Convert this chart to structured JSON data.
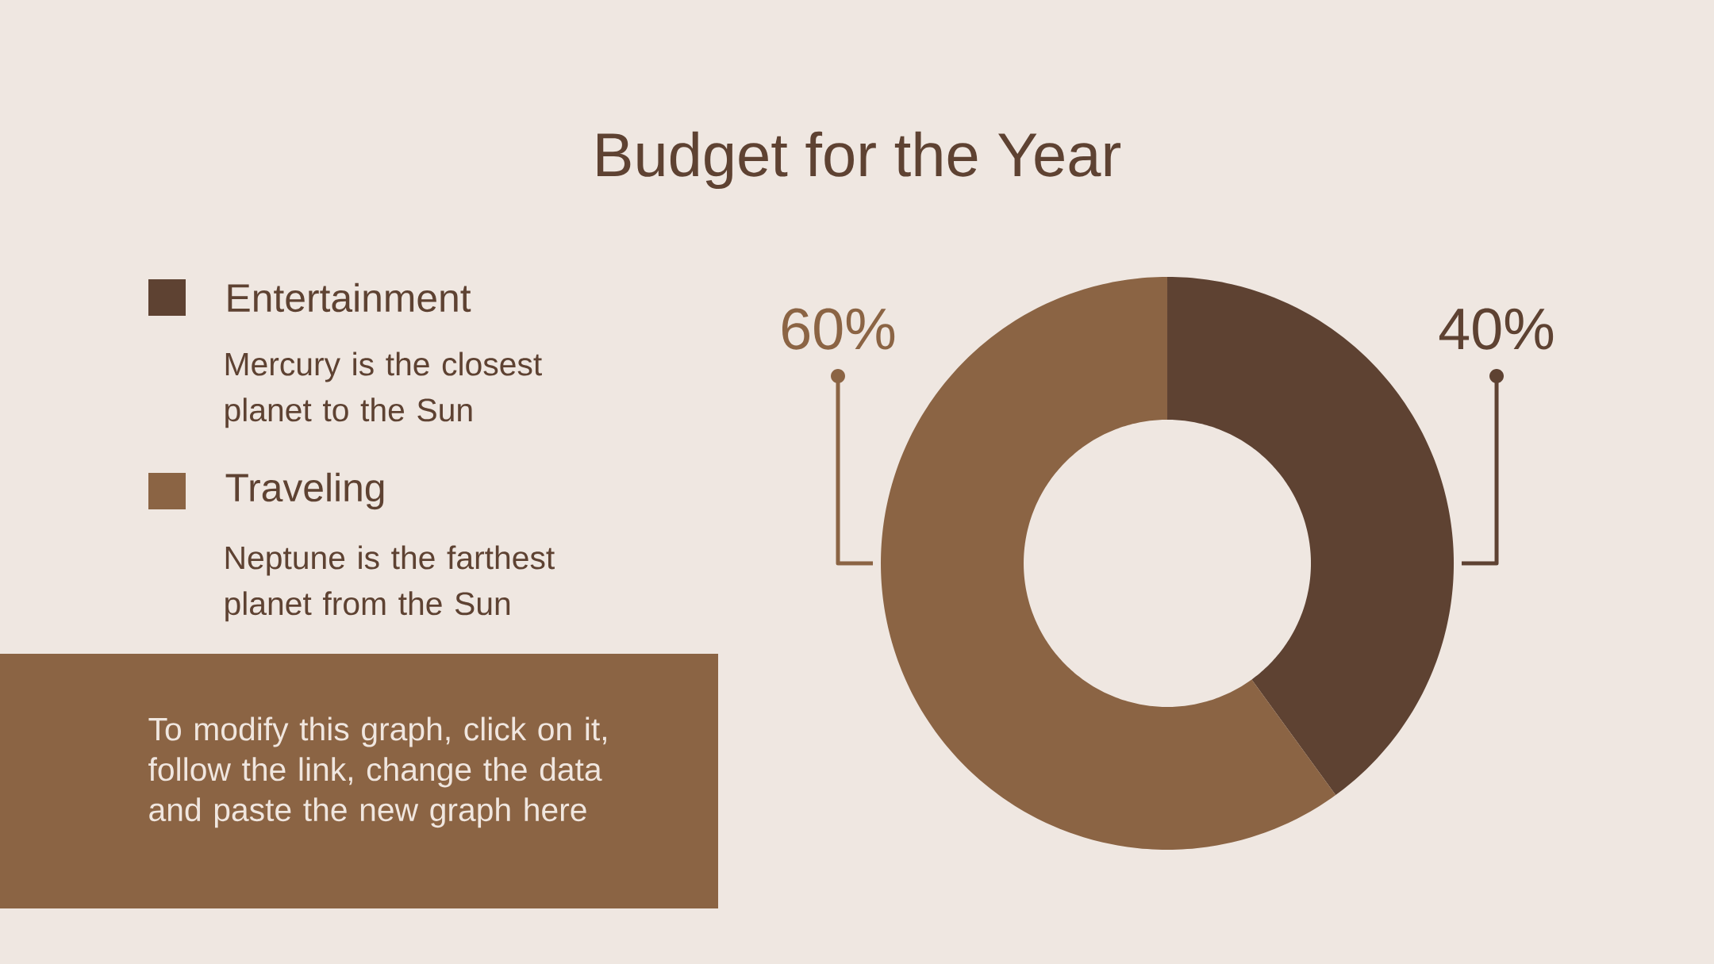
{
  "chart_data": {
    "type": "donut",
    "title": "Budget for the Year",
    "categories": [
      "Entertainment",
      "Traveling"
    ],
    "values": [
      40,
      60
    ],
    "colors": [
      "#5e4232",
      "#8b6444"
    ],
    "value_labels": [
      "40%",
      "60%"
    ],
    "legend": "left",
    "annotations": [
      "Mercury is the closest planet to the Sun",
      "Neptune is the farthest planet from the Sun",
      "To modify this graph, click on it, follow the link, change the data and paste the new graph here"
    ]
  }
}
